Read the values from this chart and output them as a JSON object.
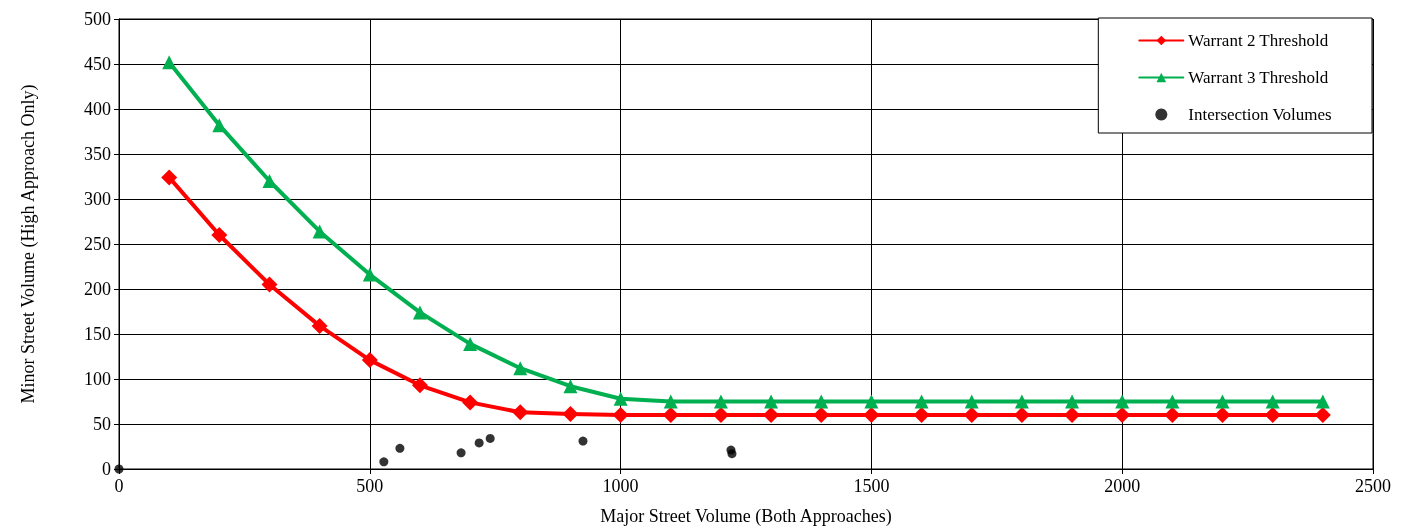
{
  "chart_data": {
    "type": "line",
    "xlabel": "Major Street Volume (Both Approaches)",
    "ylabel": "Minor Street Volume (High Approach Only)",
    "xlim": [
      0,
      2500
    ],
    "xticks": [
      0,
      500,
      1000,
      1500,
      2000,
      2500
    ],
    "ylim": [
      0,
      500
    ],
    "yticks": [
      0,
      50,
      100,
      150,
      200,
      250,
      300,
      350,
      400,
      450,
      500
    ],
    "grid": true,
    "legend": "top right",
    "line_style": "solid",
    "series": [
      {
        "name": "Warrant 2 Threshold",
        "color": "#ff0000",
        "marker": "diamond",
        "x": [
          100,
          200,
          300,
          400,
          500,
          600,
          700,
          800,
          900,
          1000,
          1100,
          1200,
          1300,
          1400,
          1500,
          1600,
          1700,
          1800,
          1900,
          2000,
          2100,
          2200,
          2300,
          2400
        ],
        "values": [
          324,
          260,
          205,
          159,
          121,
          93,
          74,
          63,
          61,
          60,
          60,
          60,
          60,
          60,
          60,
          60,
          60,
          60,
          60,
          60,
          60,
          60,
          60,
          60
        ]
      },
      {
        "name": "Warrant 3 Threshold",
        "color": "#00b050",
        "marker": "triangle",
        "x": [
          100,
          200,
          300,
          400,
          500,
          600,
          700,
          800,
          900,
          1000,
          1100,
          1200,
          1300,
          1400,
          1500,
          1600,
          1700,
          1800,
          1900,
          2000,
          2100,
          2200,
          2300,
          2400
        ],
        "values": [
          452,
          382,
          320,
          264,
          216,
          174,
          139,
          112,
          92,
          78,
          75,
          75,
          75,
          75,
          75,
          75,
          75,
          75,
          75,
          75,
          75,
          75,
          75,
          75
        ]
      },
      {
        "name": "Intersection Volumes",
        "type": "scatter",
        "color": "#000000",
        "marker": "circle",
        "x": [
          0,
          528,
          560,
          682,
          718,
          740,
          925,
          1220,
          1222
        ],
        "values": [
          0,
          8,
          23,
          18,
          29,
          34,
          31,
          21,
          17
        ]
      }
    ]
  }
}
